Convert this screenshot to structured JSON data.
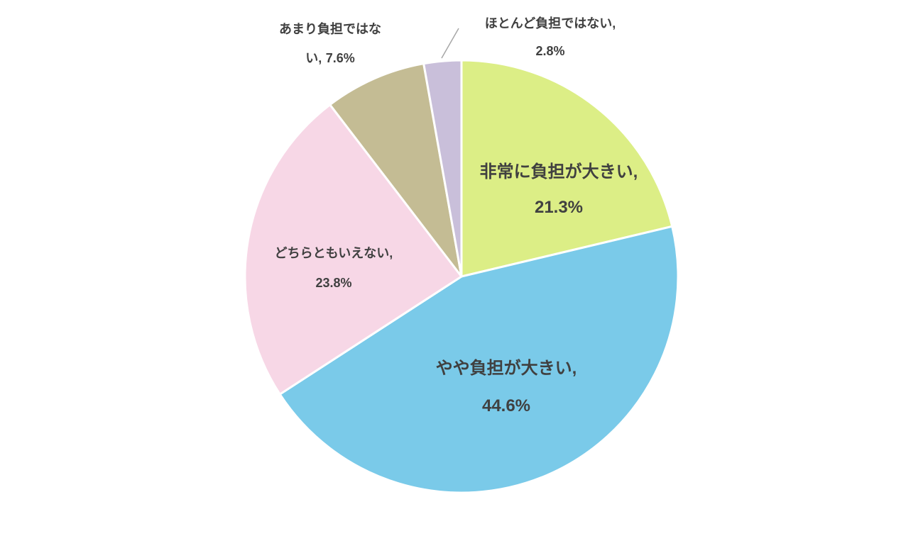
{
  "chart_data": {
    "type": "pie",
    "categories": [
      "非常に負担が大きい,",
      "やや負担が大きい,",
      "どちらともいえない,",
      "あまり負担ではない,",
      "ほとんど負担ではない,"
    ],
    "values": [
      21.3,
      44.6,
      23.8,
      7.6,
      2.8
    ],
    "value_labels": [
      "21.3%",
      "44.6%",
      "23.8%",
      "7.6%",
      "2.8%"
    ],
    "colors": [
      "#dcee86",
      "#7acae9",
      "#f7d7e6",
      "#c4bc94",
      "#c9bfda"
    ]
  }
}
